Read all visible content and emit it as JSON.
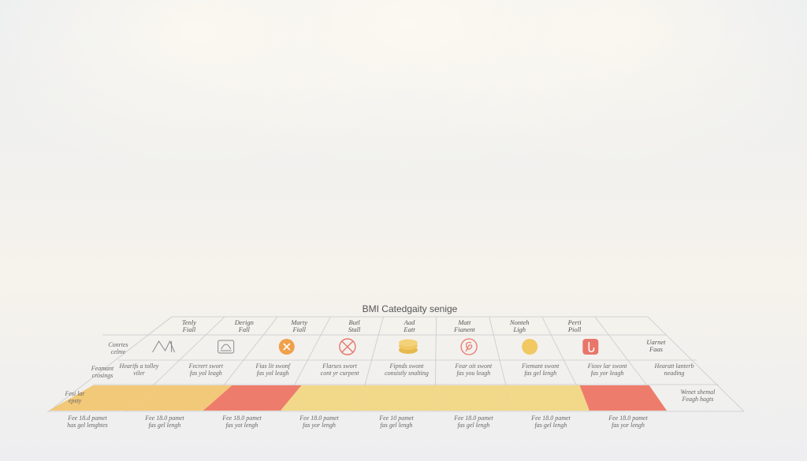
{
  "title": "BMI Catedgaity senige",
  "row_labels": [
    [
      "Conrtes",
      "celme"
    ],
    [
      "Feamant",
      "crosings"
    ],
    [
      "Fesi lar",
      "epsty"
    ]
  ],
  "columns": [
    {
      "header": [
        "Tenly",
        "Fiall"
      ],
      "icon": "mountain-icon",
      "desc": [
        "Hearifs a tolley",
        "viler"
      ],
      "band": "#f2c879",
      "foot": [
        "Fee 18.d pamet",
        "has gel lenghtes"
      ]
    },
    {
      "header": [
        "Derign",
        "Fall"
      ],
      "icon": "scale-icon",
      "desc": [
        "Fecrert swort",
        "fas yol leagh"
      ],
      "band": "#f2c879",
      "foot": [
        "Fee 18.0 pamet",
        "fas gel lengh"
      ]
    },
    {
      "header": [
        "Marty",
        "Fiall"
      ],
      "icon": "plus-circle-icon",
      "desc": [
        "Fias lit swonf",
        "fas yol leagh"
      ],
      "band": "#ee7c6c",
      "foot": [
        "Fee 18.0 pamet",
        "fas yot lengh"
      ]
    },
    {
      "header": [
        "Butl",
        "Stall"
      ],
      "icon": "cross-circle-icon",
      "desc": [
        "Flarses swort",
        "cont yr curpent"
      ],
      "band": "#f2d889",
      "foot": [
        "Fee 18.0 pamet",
        "fas yor lengh"
      ]
    },
    {
      "header": [
        "Aad",
        "Eatt"
      ],
      "icon": "stack-icon",
      "desc": [
        "Fipnds swont",
        "consistly snalting"
      ],
      "band": "#f2d889",
      "foot": [
        "Fee 10 pamet",
        "fas gel lengh"
      ]
    },
    {
      "header": [
        "Matt",
        "Fianent"
      ],
      "icon": "spiral-circle-icon",
      "desc": [
        "Fear oit swont",
        "fas you leagh"
      ],
      "band": "#f2d889",
      "foot": [
        "Fee 18.0 pamet",
        "fas gel lengh"
      ]
    },
    {
      "header": [
        "Nonteh",
        "Ligh"
      ],
      "icon": "dot-circle-icon",
      "desc": [
        "Fiemant swont",
        "fas gel lengh"
      ],
      "band": "#f2d889",
      "foot": [
        "Fee 18.0 pamet",
        "fas gel lengh"
      ]
    },
    {
      "header": [
        "Perti",
        "Pioll"
      ],
      "icon": "hook-icon",
      "desc": [
        "Fiosv lar swont",
        "fas yor leagh"
      ],
      "band": "#ee7c6c",
      "foot": [
        "Fee 18.0 pamet",
        "fas yor lengh"
      ]
    },
    {
      "header": [
        "",
        ""
      ],
      "icon": "",
      "desc": [
        "Hearatt lanterb",
        "neading"
      ],
      "band": "",
      "foot": [
        "",
        ""
      ]
    }
  ],
  "last_col": {
    "header2": [
      "Uarnet",
      "Faas"
    ],
    "band_text": [
      "Wenet shemal",
      "Feagh hagts"
    ]
  },
  "colors": {
    "orange": "#f2c879",
    "red": "#ee7c6c",
    "yellow": "#f2d889",
    "icon_orange": "#f0a04b",
    "icon_red": "#e8766a",
    "icon_yellow": "#f1c862"
  }
}
